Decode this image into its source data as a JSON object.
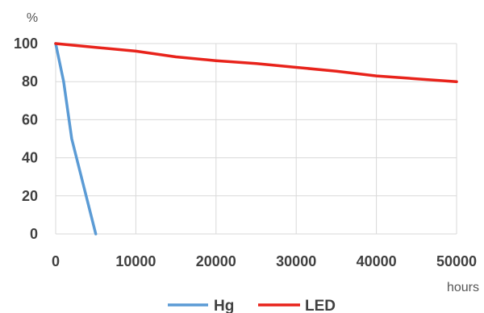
{
  "chart_data": {
    "type": "line",
    "title": "",
    "xlabel": "hours",
    "ylabel": "%",
    "xlim": [
      0,
      50000
    ],
    "ylim": [
      0,
      100
    ],
    "x_ticks": [
      0,
      10000,
      20000,
      30000,
      40000,
      50000
    ],
    "y_ticks": [
      0,
      20,
      40,
      60,
      80,
      100
    ],
    "grid": true,
    "legend": "bottom",
    "series": [
      {
        "name": "Hg",
        "color": "#5b9bd5",
        "points": [
          [
            0,
            100
          ],
          [
            1000,
            80
          ],
          [
            2000,
            50
          ],
          [
            3500,
            25
          ],
          [
            5000,
            0
          ]
        ]
      },
      {
        "name": "LED",
        "color": "#e8231b",
        "points": [
          [
            0,
            100
          ],
          [
            5000,
            98
          ],
          [
            10000,
            96
          ],
          [
            15000,
            93
          ],
          [
            20000,
            91
          ],
          [
            25000,
            89.5
          ],
          [
            30000,
            87.5
          ],
          [
            35000,
            85.5
          ],
          [
            40000,
            83
          ],
          [
            45000,
            81.5
          ],
          [
            50000,
            80
          ]
        ]
      }
    ]
  }
}
